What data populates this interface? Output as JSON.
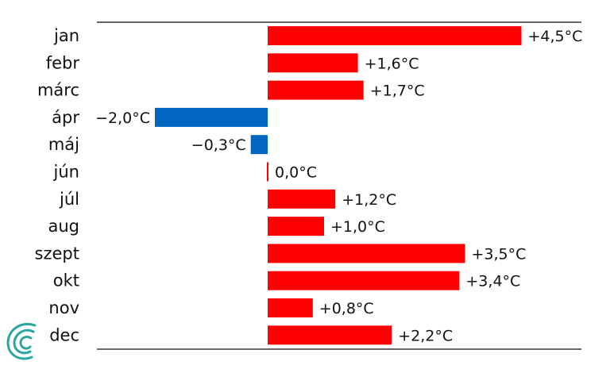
{
  "chart_data": {
    "type": "bar",
    "orientation": "horizontal",
    "categories": [
      "jan",
      "febr",
      "márc",
      "ápr",
      "máj",
      "jún",
      "júl",
      "aug",
      "szept",
      "okt",
      "nov",
      "dec"
    ],
    "values": [
      4.5,
      1.6,
      1.7,
      -2.0,
      -0.3,
      0.0,
      1.2,
      1.0,
      3.5,
      3.4,
      0.8,
      2.2
    ],
    "value_labels": [
      "+4,5°C",
      "+1,6°C",
      "+1,7°C",
      "−2,0°C",
      "−0,3°C",
      "0,0°C",
      "+1,2°C",
      "+1,0°C",
      "+3,5°C",
      "+3,4°C",
      "+0,8°C",
      "+2,2°C"
    ],
    "xlim": [
      -3.0,
      5.5
    ],
    "grid": false,
    "legend": "none",
    "colors": {
      "positive": "#ff0000",
      "negative": "#0066bf"
    }
  },
  "logo": {
    "name": "spiral-logo-icon",
    "color": "#2aa6a0"
  }
}
